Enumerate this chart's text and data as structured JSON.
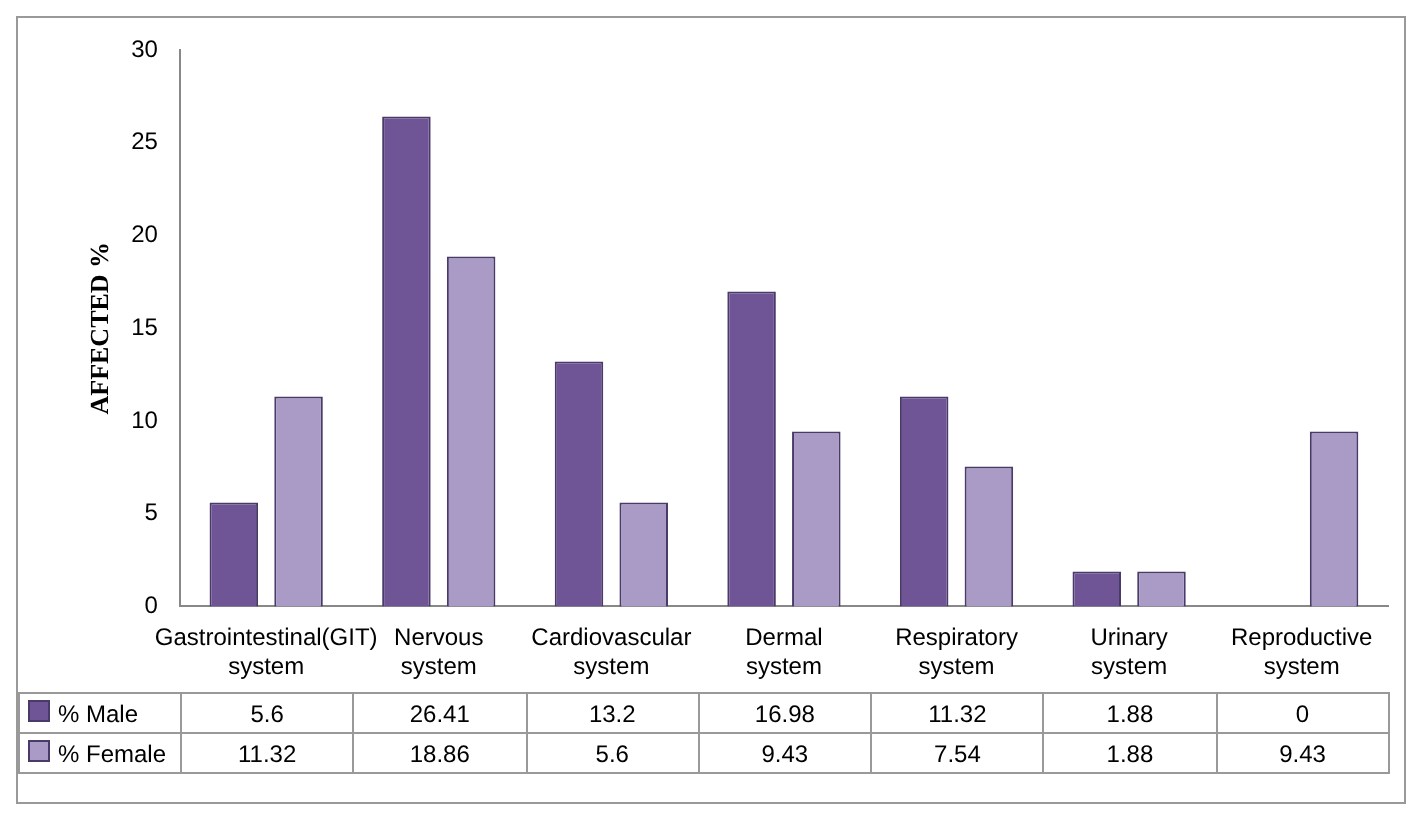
{
  "chart_data": {
    "type": "bar",
    "ylabel": "AFFECTED %",
    "categories": [
      "Gastrointestinal(GIT) system",
      "Nervous system",
      "Cardiovascular system",
      "Dermal system",
      "Respiratory system",
      "Urinary system",
      "Reproductive system"
    ],
    "series": [
      {
        "name": "% Male",
        "color": "#6f5596",
        "values": [
          5.6,
          26.41,
          13.2,
          16.98,
          11.32,
          1.88,
          0
        ]
      },
      {
        "name": "% Female",
        "color": "#a99ac6",
        "values": [
          11.32,
          18.86,
          5.6,
          9.43,
          7.54,
          1.88,
          9.43
        ]
      }
    ],
    "ylim": [
      0,
      30
    ],
    "yticks": [
      0,
      5,
      10,
      15,
      20,
      25,
      30
    ],
    "grid": false,
    "legend": "bottom",
    "data_labels": true
  }
}
